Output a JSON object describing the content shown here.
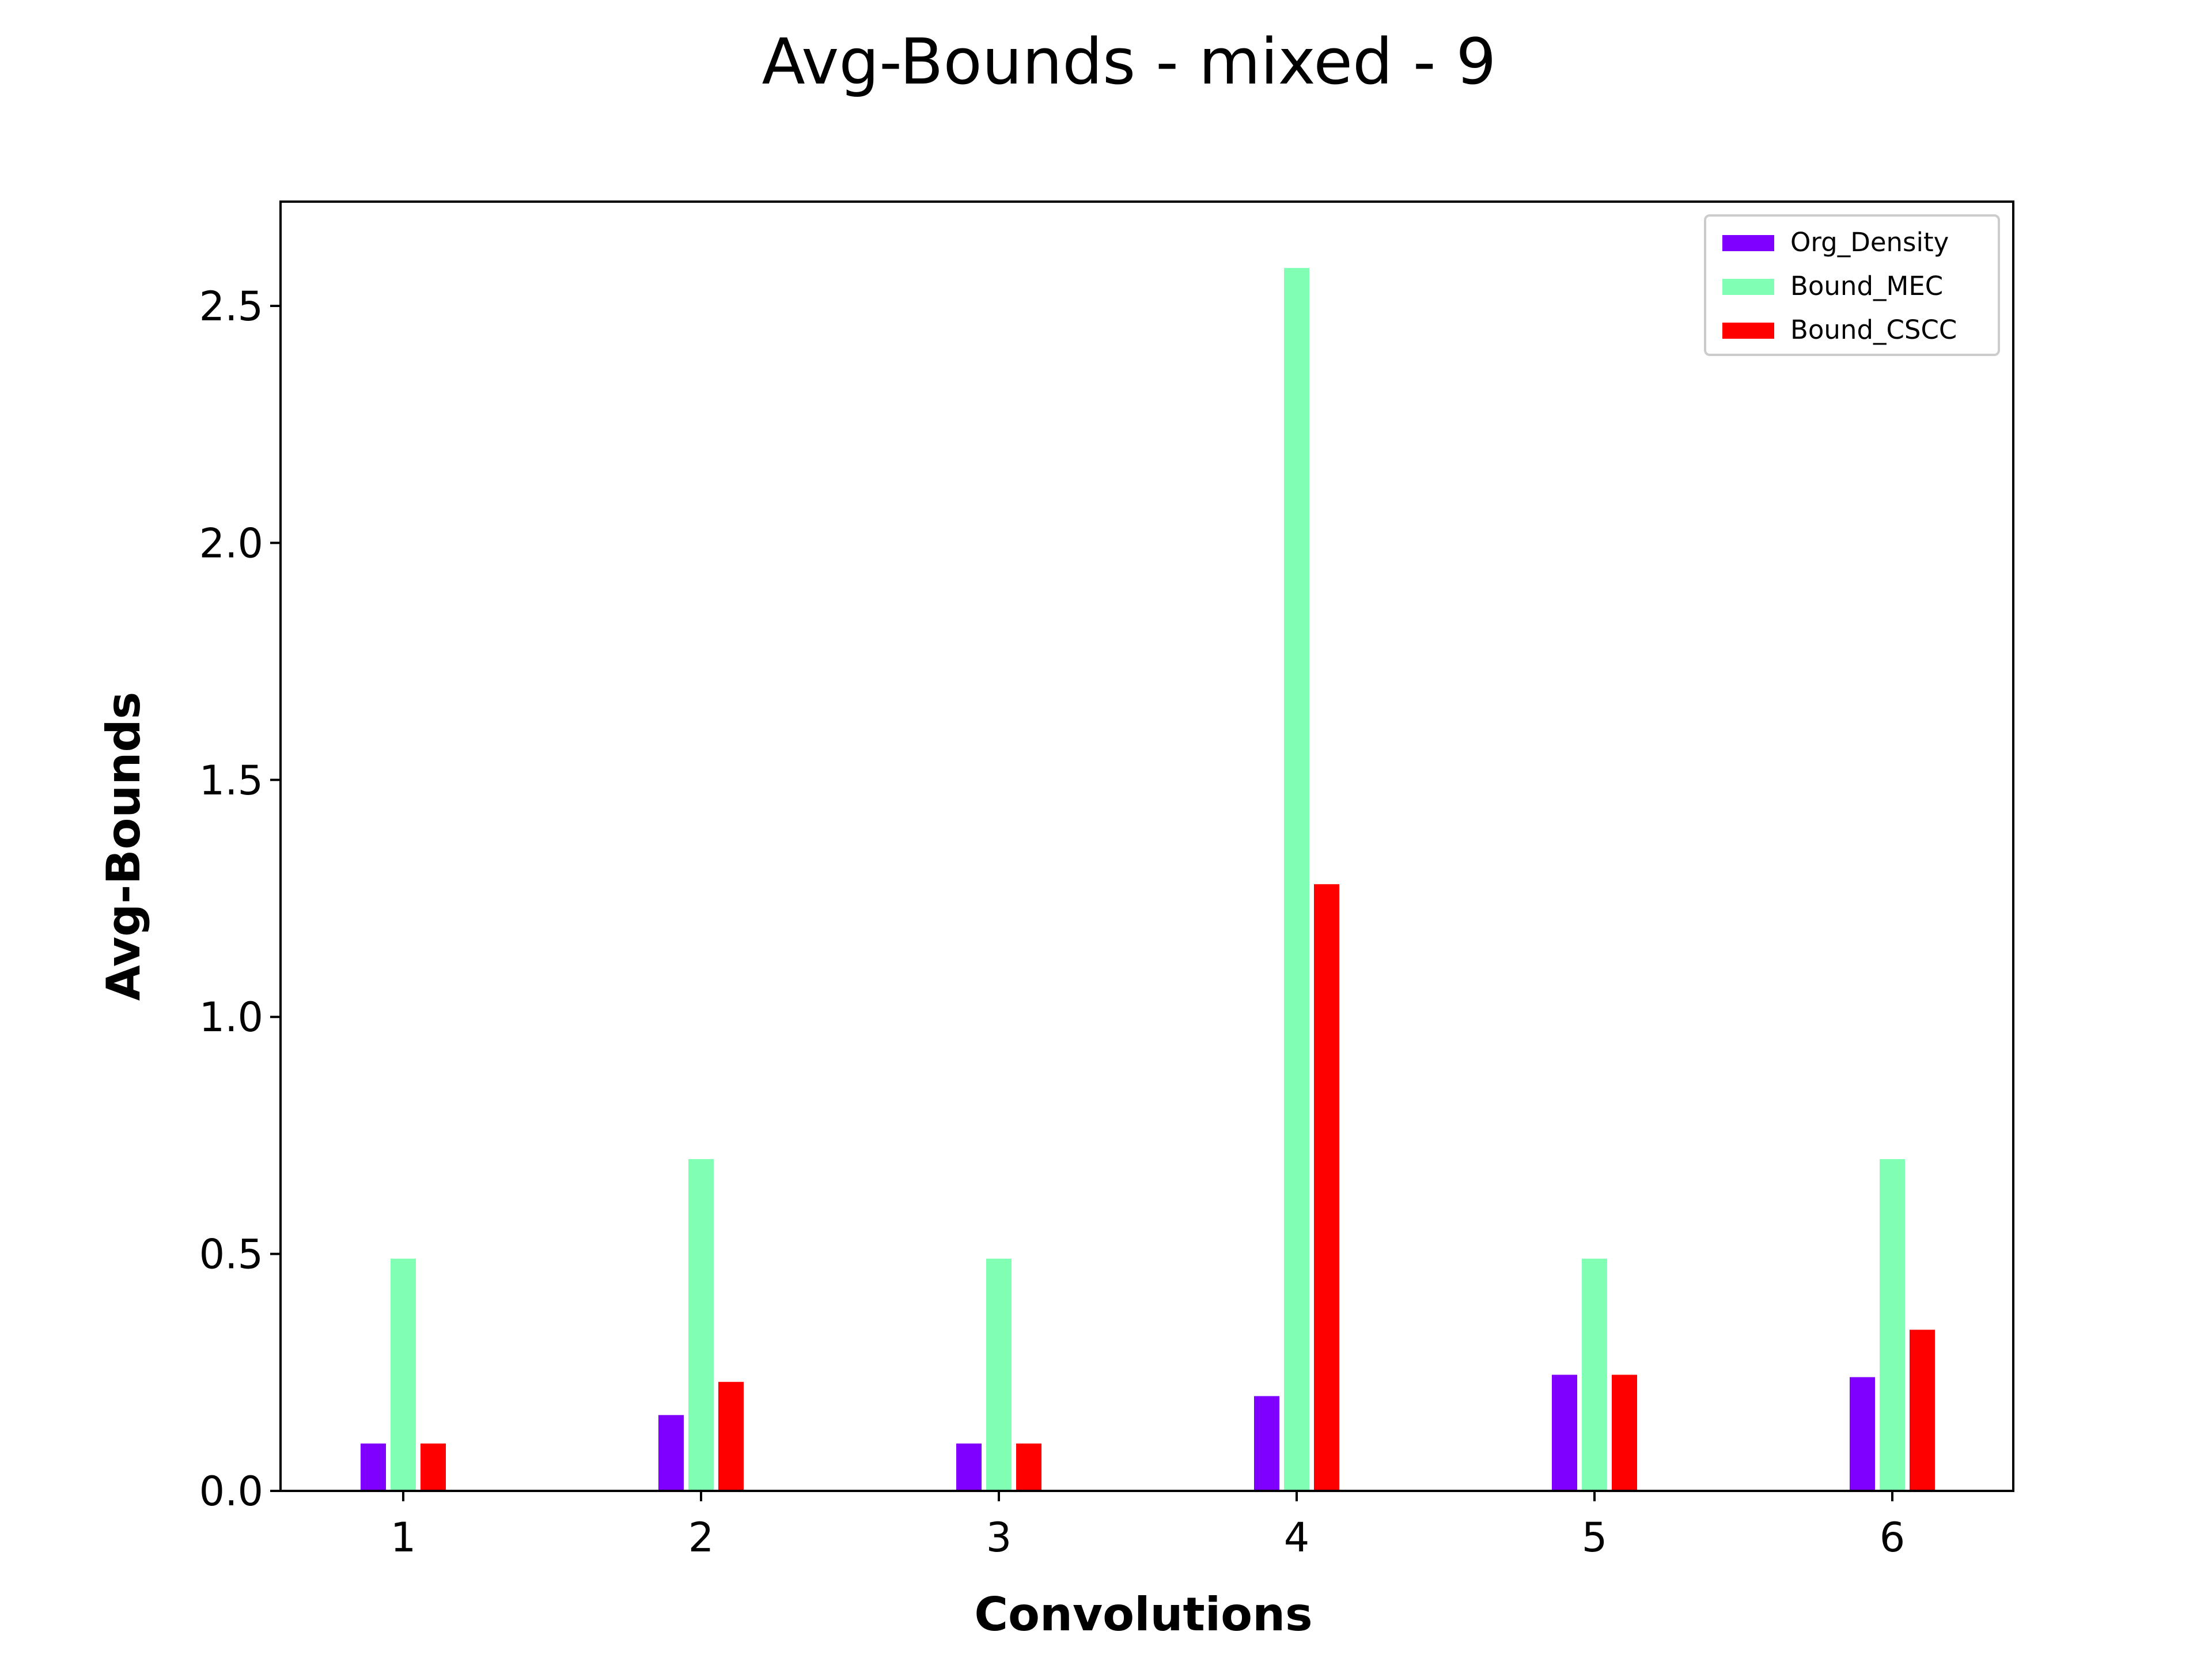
{
  "chart_data": {
    "type": "bar",
    "title": "Avg-Bounds - mixed - 9",
    "xlabel": "Convolutions",
    "ylabel": "Avg-Bounds",
    "categories": [
      "1",
      "2",
      "3",
      "4",
      "5",
      "6"
    ],
    "yticks": [
      "0.0",
      "0.5",
      "1.0",
      "1.5",
      "2.0",
      "2.5"
    ],
    "ylim": [
      0,
      2.72
    ],
    "grid": false,
    "legend_position": "top-right",
    "series": [
      {
        "name": "Org_Density",
        "color": "#7f00ff",
        "values": [
          0.1,
          0.16,
          0.1,
          0.2,
          0.245,
          0.24
        ]
      },
      {
        "name": "Bound_MEC",
        "color": "#80ffb4",
        "values": [
          0.49,
          0.7,
          0.49,
          2.58,
          0.49,
          0.7
        ]
      },
      {
        "name": "Bound_CSCC",
        "color": "#ff0000",
        "values": [
          0.1,
          0.23,
          0.1,
          1.28,
          0.245,
          0.34
        ]
      }
    ]
  }
}
